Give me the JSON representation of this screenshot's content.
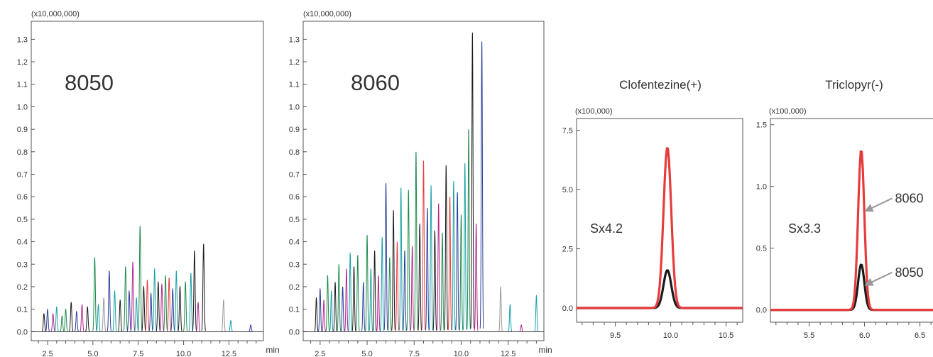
{
  "chart_data": [
    {
      "type": "line",
      "id": "tic-8050",
      "multiplier_label": "(x10,000,000)",
      "panel_label": "8050",
      "x_unit_label": "min",
      "xlim": [
        1.6,
        14.4
      ],
      "ylim": [
        -0.04,
        1.38
      ],
      "x_ticks": [
        2.5,
        5.0,
        7.5,
        10.0,
        12.5
      ],
      "x_tick_labels": [
        "2.5",
        "5.0",
        "7.5",
        "10.0",
        "12.5"
      ],
      "y_ticks": [
        0.0,
        0.1,
        0.2,
        0.3,
        0.4,
        0.5,
        0.6,
        0.7,
        0.8,
        0.9,
        1.0,
        1.1,
        1.2,
        1.3
      ],
      "y_tick_labels": [
        "0.0",
        "0.1",
        "0.2",
        "0.3",
        "0.4",
        "0.5",
        "0.6",
        "0.7",
        "0.8",
        "0.9",
        "1.0",
        "1.1",
        "1.2",
        "1.3"
      ],
      "peaks": [
        [
          2.3,
          0.08,
          "#1a1a1a"
        ],
        [
          2.5,
          0.1,
          "#283e9a"
        ],
        [
          2.8,
          0.08,
          "#b4228c"
        ],
        [
          3.0,
          0.11,
          "#17a0a8"
        ],
        [
          3.3,
          0.07,
          "#1f8a4c"
        ],
        [
          3.5,
          0.1,
          "#1f8a4c"
        ],
        [
          3.8,
          0.13,
          "#1a1a1a"
        ],
        [
          4.1,
          0.09,
          "#283e9a"
        ],
        [
          4.4,
          0.12,
          "#b4228c"
        ],
        [
          4.7,
          0.11,
          "#1a1a1a"
        ],
        [
          5.1,
          0.33,
          "#1f8a4c"
        ],
        [
          5.3,
          0.12,
          "#17a0a8"
        ],
        [
          5.6,
          0.15,
          "#9a9a9a"
        ],
        [
          5.9,
          0.27,
          "#283e9a"
        ],
        [
          6.2,
          0.18,
          "#17a0a8"
        ],
        [
          6.5,
          0.14,
          "#1a1a1a"
        ],
        [
          6.8,
          0.29,
          "#1f8a4c"
        ],
        [
          7.0,
          0.18,
          "#283e9a"
        ],
        [
          7.2,
          0.31,
          "#b4228c"
        ],
        [
          7.4,
          0.15,
          "#17a0a8"
        ],
        [
          7.6,
          0.47,
          "#1f8a4c"
        ],
        [
          7.8,
          0.2,
          "#1a1a1a"
        ],
        [
          8.0,
          0.23,
          "#e63c3c"
        ],
        [
          8.2,
          0.17,
          "#283e9a"
        ],
        [
          8.4,
          0.28,
          "#17a0a8"
        ],
        [
          8.6,
          0.22,
          "#1a1a1a"
        ],
        [
          8.8,
          0.21,
          "#b4228c"
        ],
        [
          9.0,
          0.25,
          "#1f8a4c"
        ],
        [
          9.2,
          0.24,
          "#e63c3c"
        ],
        [
          9.4,
          0.19,
          "#283e9a"
        ],
        [
          9.6,
          0.27,
          "#17a0a8"
        ],
        [
          9.8,
          0.2,
          "#1a1a1a"
        ],
        [
          10.1,
          0.22,
          "#1f8a4c"
        ],
        [
          10.4,
          0.26,
          "#17a0a8"
        ],
        [
          10.6,
          0.36,
          "#1a1a1a"
        ],
        [
          10.8,
          0.13,
          "#b4228c"
        ],
        [
          11.1,
          0.39,
          "#1a1a1a"
        ],
        [
          12.2,
          0.14,
          "#9a9a9a"
        ],
        [
          12.6,
          0.05,
          "#17a0a8"
        ],
        [
          13.7,
          0.03,
          "#283e9a"
        ]
      ]
    },
    {
      "type": "line",
      "id": "tic-8060",
      "multiplier_label": "(x10,000,000)",
      "panel_label": "8060",
      "x_unit_label": "min",
      "xlim": [
        1.6,
        14.4
      ],
      "ylim": [
        -0.04,
        1.38
      ],
      "x_ticks": [
        2.5,
        5.0,
        7.5,
        10.0,
        12.5
      ],
      "x_tick_labels": [
        "2.5",
        "5.0",
        "7.5",
        "10.0",
        "12.5"
      ],
      "y_ticks": [
        0.0,
        0.1,
        0.2,
        0.3,
        0.4,
        0.5,
        0.6,
        0.7,
        0.8,
        0.9,
        1.0,
        1.1,
        1.2,
        1.3
      ],
      "y_tick_labels": [
        "0.0",
        "0.1",
        "0.2",
        "0.3",
        "0.4",
        "0.5",
        "0.6",
        "0.7",
        "0.8",
        "0.9",
        "1.0",
        "1.1",
        "1.2",
        "1.3"
      ],
      "peaks": [
        [
          2.3,
          0.15,
          "#1a1a1a"
        ],
        [
          2.5,
          0.19,
          "#283e9a"
        ],
        [
          2.7,
          0.14,
          "#b4228c"
        ],
        [
          2.9,
          0.25,
          "#1f8a4c"
        ],
        [
          3.1,
          0.18,
          "#17a0a8"
        ],
        [
          3.3,
          0.22,
          "#1a1a1a"
        ],
        [
          3.5,
          0.3,
          "#1f8a4c"
        ],
        [
          3.7,
          0.2,
          "#283e9a"
        ],
        [
          3.9,
          0.28,
          "#b4228c"
        ],
        [
          4.1,
          0.35,
          "#17a0a8"
        ],
        [
          4.3,
          0.29,
          "#1a1a1a"
        ],
        [
          4.5,
          0.34,
          "#1f8a4c"
        ],
        [
          4.8,
          0.22,
          "#283e9a"
        ],
        [
          5.0,
          0.43,
          "#1f8a4c"
        ],
        [
          5.2,
          0.28,
          "#17a0a8"
        ],
        [
          5.4,
          0.36,
          "#1a1a1a"
        ],
        [
          5.6,
          0.25,
          "#b4228c"
        ],
        [
          5.8,
          0.42,
          "#17a0a8"
        ],
        [
          6.0,
          0.66,
          "#283e9a"
        ],
        [
          6.2,
          0.33,
          "#1f8a4c"
        ],
        [
          6.4,
          0.54,
          "#1a1a1a"
        ],
        [
          6.6,
          0.4,
          "#e63c3c"
        ],
        [
          6.8,
          0.64,
          "#17a0a8"
        ],
        [
          7.0,
          0.36,
          "#283e9a"
        ],
        [
          7.2,
          0.63,
          "#1f8a4c"
        ],
        [
          7.4,
          0.38,
          "#b4228c"
        ],
        [
          7.6,
          0.8,
          "#1f8a4c"
        ],
        [
          7.8,
          0.48,
          "#1a1a1a"
        ],
        [
          8.0,
          0.76,
          "#e63c3c"
        ],
        [
          8.2,
          0.55,
          "#283e9a"
        ],
        [
          8.4,
          0.65,
          "#17a0a8"
        ],
        [
          8.6,
          0.45,
          "#1a1a1a"
        ],
        [
          8.8,
          0.57,
          "#b4228c"
        ],
        [
          9.0,
          0.44,
          "#1f8a4c"
        ],
        [
          9.2,
          0.74,
          "#1a1a1a"
        ],
        [
          9.4,
          0.6,
          "#e63c3c"
        ],
        [
          9.6,
          0.67,
          "#17a0a8"
        ],
        [
          9.8,
          0.62,
          "#283e9a"
        ],
        [
          10.0,
          0.52,
          "#1f8a4c"
        ],
        [
          10.2,
          0.75,
          "#17a0a8"
        ],
        [
          10.4,
          0.9,
          "#1f8a4c"
        ],
        [
          10.6,
          1.33,
          "#1a1a1a"
        ],
        [
          10.8,
          0.48,
          "#b4228c"
        ],
        [
          11.1,
          1.29,
          "#283e9a"
        ],
        [
          12.1,
          0.2,
          "#9a9a9a"
        ],
        [
          12.6,
          0.12,
          "#17a0a8"
        ],
        [
          13.2,
          0.03,
          "#b4228c"
        ],
        [
          14.0,
          0.16,
          "#17a0a8"
        ]
      ]
    },
    {
      "type": "line",
      "id": "clofentezine",
      "title": "Clofentezine(+)",
      "multiplier_label": "(x100,000)",
      "annotation": "Sx4.2",
      "xlim": [
        9.15,
        10.65
      ],
      "ylim": [
        -0.6,
        8.0
      ],
      "x_ticks": [
        9.5,
        10.0,
        10.5
      ],
      "x_tick_labels": [
        "9.5",
        "10.0",
        "10.5"
      ],
      "y_ticks": [
        0.0,
        2.5,
        5.0,
        7.5
      ],
      "y_tick_labels": [
        "0.0",
        "2.5",
        "5.0",
        "7.5"
      ],
      "series": [
        {
          "color": "#1a1a1a",
          "center": 9.97,
          "width": 0.035,
          "height": 1.6
        },
        {
          "color": "#e63c3c",
          "center": 9.97,
          "width": 0.035,
          "height": 6.8
        }
      ]
    },
    {
      "type": "line",
      "id": "triclopyr",
      "title": "Triclopyr(-)",
      "multiplier_label": "(x100,000)",
      "annotation": "Sx3.3",
      "xlim": [
        5.15,
        6.65
      ],
      "ylim": [
        -0.1,
        1.55
      ],
      "x_ticks": [
        5.5,
        6.0,
        6.5
      ],
      "x_tick_labels": [
        "5.5",
        "6.0",
        "6.5"
      ],
      "y_ticks": [
        0.0,
        0.5,
        1.0,
        1.5
      ],
      "y_tick_labels": [
        "0.0",
        "0.5",
        "1.0",
        "1.5"
      ],
      "series": [
        {
          "name": "8050",
          "color": "#1a1a1a",
          "center": 5.97,
          "width": 0.028,
          "height": 0.37
        },
        {
          "name": "8060",
          "color": "#e63c3c",
          "center": 5.97,
          "width": 0.028,
          "height": 1.3
        }
      ],
      "callouts": [
        {
          "label": "8060",
          "x": 5.98,
          "y": 0.8
        },
        {
          "label": "8050",
          "x": 5.98,
          "y": 0.2
        }
      ]
    }
  ]
}
